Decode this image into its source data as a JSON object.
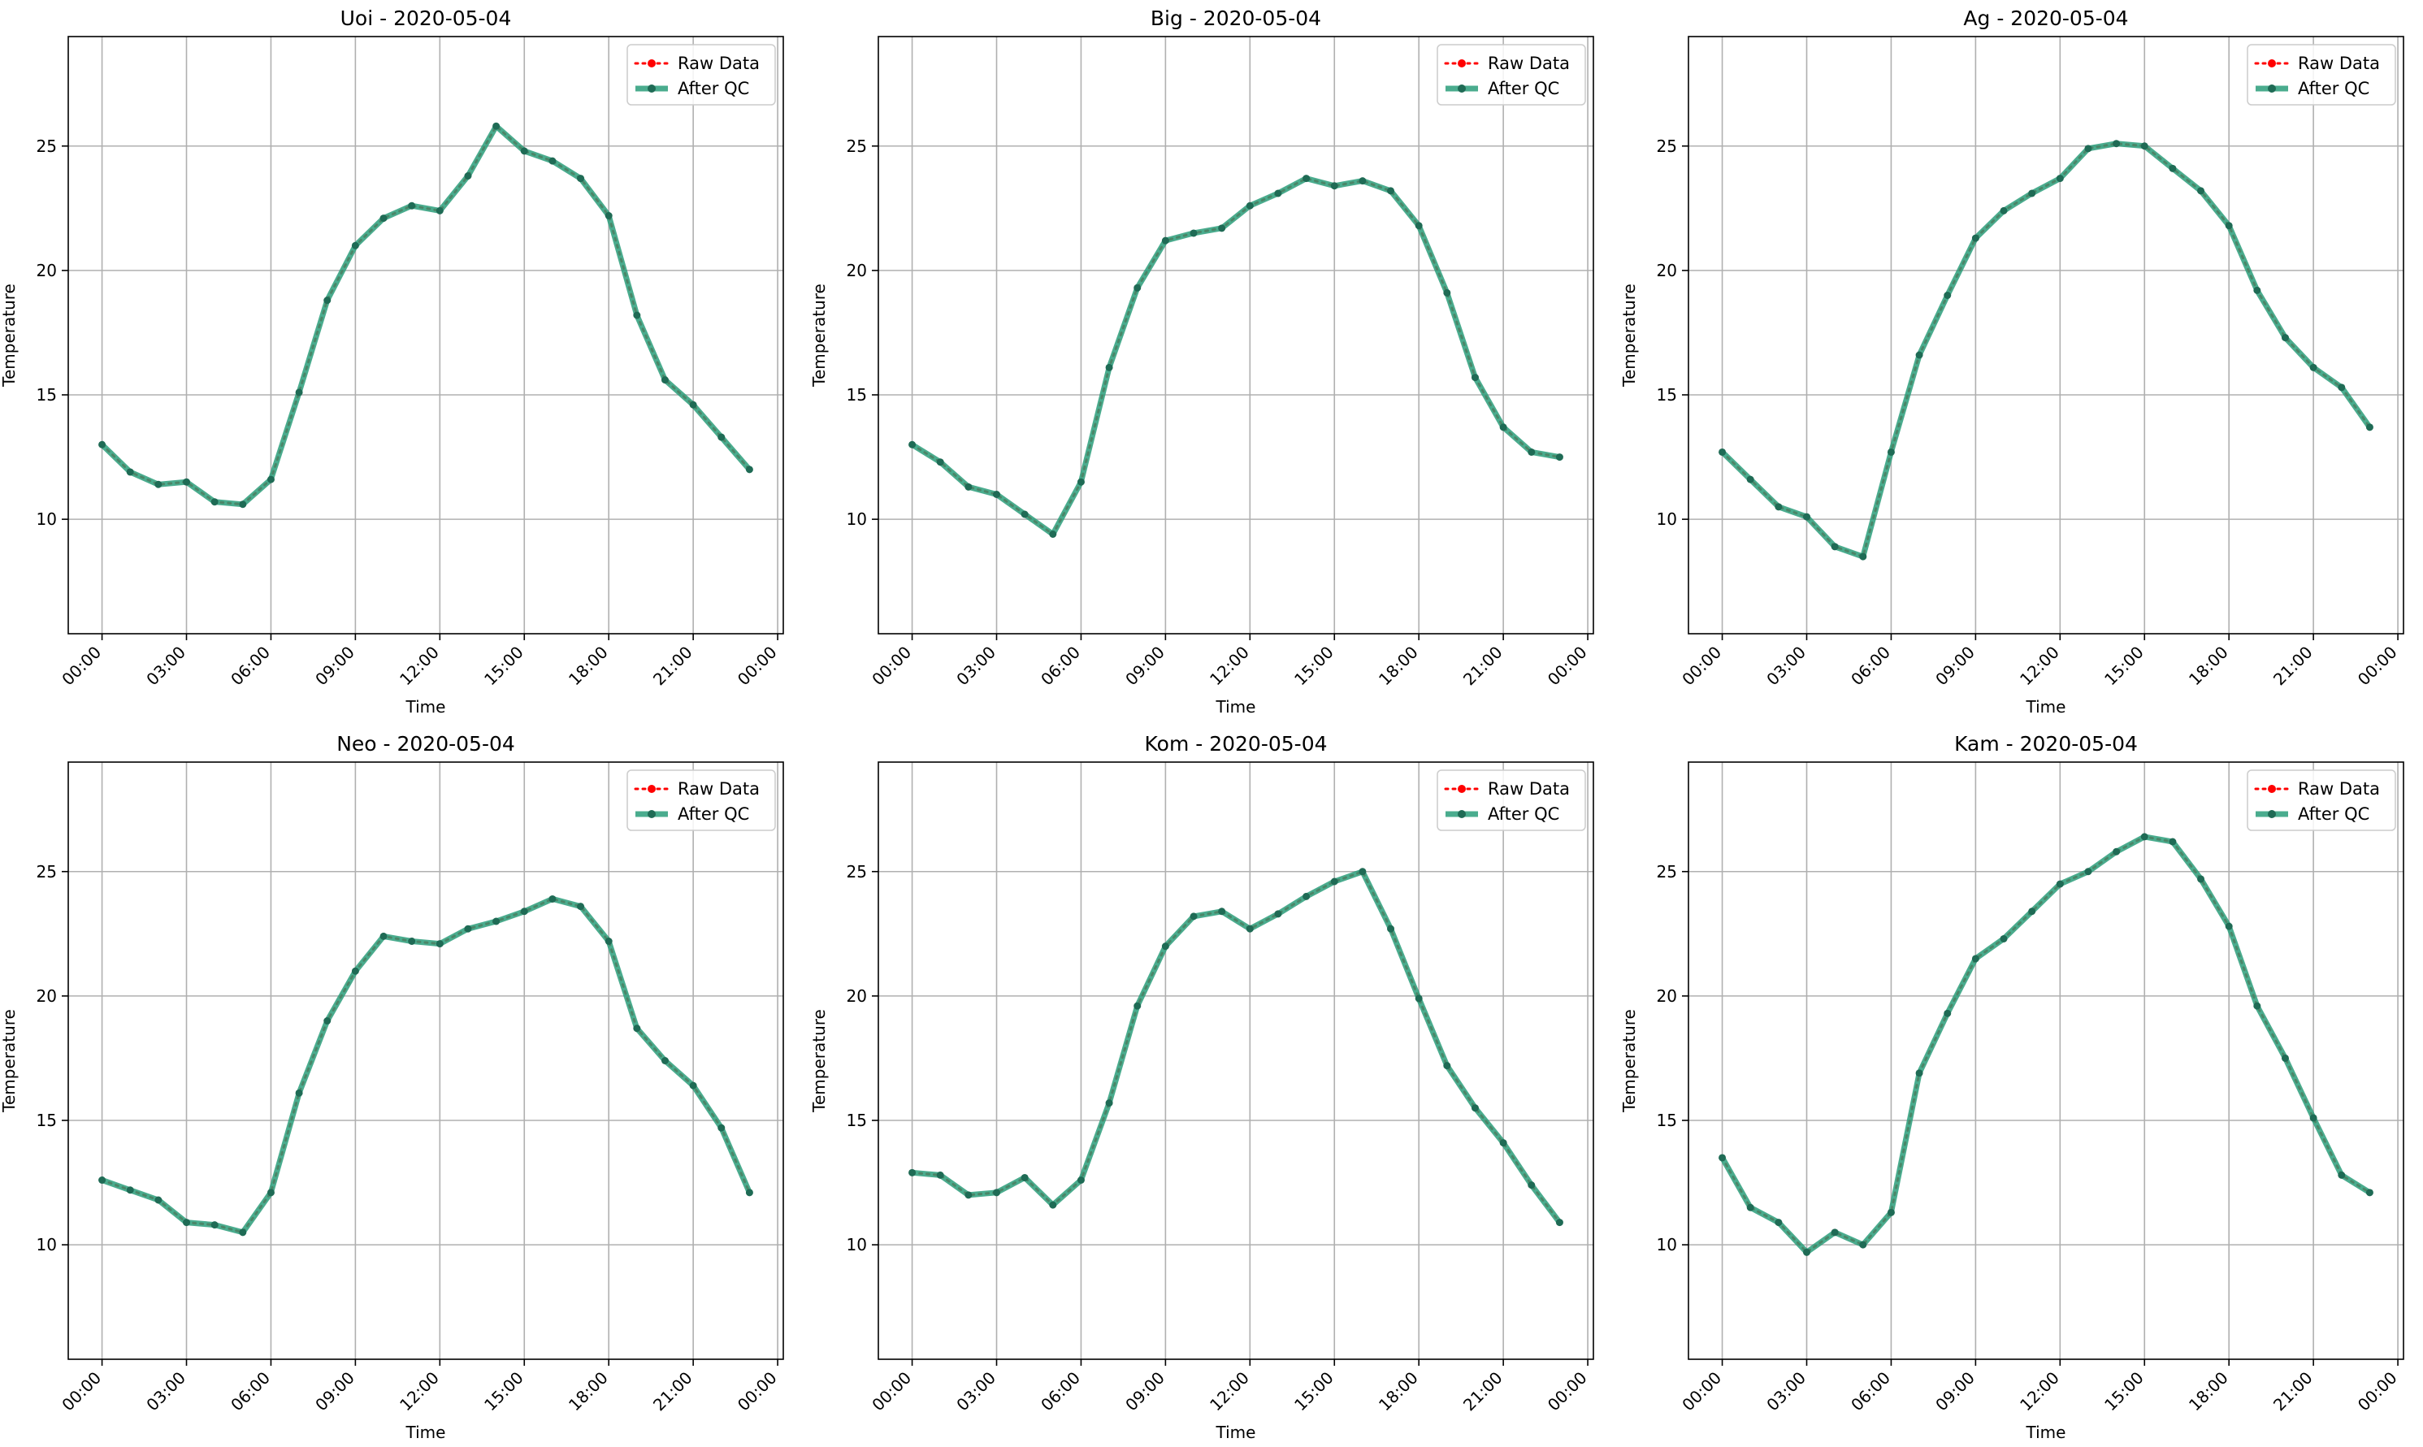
{
  "figure": {
    "xlabel": "Time",
    "ylabel": "Temperature",
    "legend": {
      "placement": "top-right",
      "raw_label": "Raw Data",
      "qc_label": "After QC"
    },
    "colors": {
      "raw": "#ff0000",
      "qc": "#2a9d7a",
      "marker": "#1f6b55",
      "grid": "#b0b0b0"
    },
    "x_ticks": [
      "00:00",
      "03:00",
      "06:00",
      "09:00",
      "12:00",
      "15:00",
      "18:00",
      "21:00",
      "00:00"
    ],
    "y_ticks": [
      10,
      15,
      20,
      25
    ]
  },
  "chart_data": [
    {
      "type": "line",
      "title": "Uoi - 2020-05-04",
      "xlabel": "Time",
      "ylabel": "Temperature",
      "x_hours": [
        0,
        1,
        2,
        3,
        4,
        5,
        6,
        7,
        8,
        9,
        10,
        11,
        12,
        13,
        14,
        15,
        16,
        17,
        18,
        19,
        20,
        21,
        22,
        23
      ],
      "xlim": [
        -1.2,
        24.2
      ],
      "ylim": [
        5.4,
        29.4
      ],
      "grid": true,
      "legend": "top-right",
      "series": [
        {
          "name": "Raw Data",
          "values": [
            13.0,
            11.9,
            11.4,
            11.5,
            10.7,
            10.6,
            11.6,
            15.1,
            18.8,
            21.0,
            22.1,
            22.6,
            22.4,
            23.8,
            25.8,
            24.8,
            24.4,
            23.7,
            22.2,
            18.2,
            15.6,
            14.6,
            13.3,
            12.0
          ]
        },
        {
          "name": "After QC",
          "values": [
            13.0,
            11.9,
            11.4,
            11.5,
            10.7,
            10.6,
            11.6,
            15.1,
            18.8,
            21.0,
            22.1,
            22.6,
            22.4,
            23.8,
            25.8,
            24.8,
            24.4,
            23.7,
            22.2,
            18.2,
            15.6,
            14.6,
            13.3,
            12.0
          ]
        }
      ]
    },
    {
      "type": "line",
      "title": "Big - 2020-05-04",
      "xlabel": "Time",
      "ylabel": "Temperature",
      "x_hours": [
        0,
        1,
        2,
        3,
        4,
        5,
        6,
        7,
        8,
        9,
        10,
        11,
        12,
        13,
        14,
        15,
        16,
        17,
        18,
        19,
        20,
        21,
        22,
        23
      ],
      "xlim": [
        -1.2,
        24.2
      ],
      "ylim": [
        5.4,
        29.4
      ],
      "grid": true,
      "legend": "top-right",
      "series": [
        {
          "name": "Raw Data",
          "values": [
            13.0,
            12.3,
            11.3,
            11.0,
            10.2,
            9.4,
            11.5,
            16.1,
            19.3,
            21.2,
            21.5,
            21.7,
            22.6,
            23.1,
            23.7,
            23.4,
            23.6,
            23.2,
            21.8,
            19.1,
            15.7,
            13.7,
            12.7,
            12.5
          ]
        },
        {
          "name": "After QC",
          "values": [
            13.0,
            12.3,
            11.3,
            11.0,
            10.2,
            9.4,
            11.5,
            16.1,
            19.3,
            21.2,
            21.5,
            21.7,
            22.6,
            23.1,
            23.7,
            23.4,
            23.6,
            23.2,
            21.8,
            19.1,
            15.7,
            13.7,
            12.7,
            12.5
          ]
        }
      ]
    },
    {
      "type": "line",
      "title": "Ag - 2020-05-04",
      "xlabel": "Time",
      "ylabel": "Temperature",
      "x_hours": [
        0,
        1,
        2,
        3,
        4,
        5,
        6,
        7,
        8,
        9,
        10,
        11,
        12,
        13,
        14,
        15,
        16,
        17,
        18,
        19,
        20,
        21,
        22,
        23
      ],
      "xlim": [
        -1.2,
        24.2
      ],
      "ylim": [
        5.4,
        29.4
      ],
      "grid": true,
      "legend": "top-right",
      "series": [
        {
          "name": "Raw Data",
          "values": [
            12.7,
            11.6,
            10.5,
            10.1,
            8.9,
            8.5,
            12.7,
            16.6,
            19.0,
            21.3,
            22.4,
            23.1,
            23.7,
            24.9,
            25.1,
            25.0,
            24.1,
            23.2,
            21.8,
            19.2,
            17.3,
            16.1,
            15.3,
            13.7
          ]
        },
        {
          "name": "After QC",
          "values": [
            12.7,
            11.6,
            10.5,
            10.1,
            8.9,
            8.5,
            12.7,
            16.6,
            19.0,
            21.3,
            22.4,
            23.1,
            23.7,
            24.9,
            25.1,
            25.0,
            24.1,
            23.2,
            21.8,
            19.2,
            17.3,
            16.1,
            15.3,
            13.7
          ]
        }
      ]
    },
    {
      "type": "line",
      "title": "Neo - 2020-05-04",
      "xlabel": "Time",
      "ylabel": "Temperature",
      "x_hours": [
        0,
        1,
        2,
        3,
        4,
        5,
        6,
        7,
        8,
        9,
        10,
        11,
        12,
        13,
        14,
        15,
        16,
        17,
        18,
        19,
        20,
        21,
        22,
        23
      ],
      "xlim": [
        -1.2,
        24.2
      ],
      "ylim": [
        5.4,
        29.4
      ],
      "grid": true,
      "legend": "top-right",
      "series": [
        {
          "name": "Raw Data",
          "values": [
            12.6,
            12.2,
            11.8,
            10.9,
            10.8,
            10.5,
            12.1,
            16.1,
            19.0,
            21.0,
            22.4,
            22.2,
            22.1,
            22.7,
            23.0,
            23.4,
            23.9,
            23.6,
            22.2,
            18.7,
            17.4,
            16.4,
            14.7,
            12.1
          ]
        },
        {
          "name": "After QC",
          "values": [
            12.6,
            12.2,
            11.8,
            10.9,
            10.8,
            10.5,
            12.1,
            16.1,
            19.0,
            21.0,
            22.4,
            22.2,
            22.1,
            22.7,
            23.0,
            23.4,
            23.9,
            23.6,
            22.2,
            18.7,
            17.4,
            16.4,
            14.7,
            12.1
          ]
        }
      ]
    },
    {
      "type": "line",
      "title": "Kom - 2020-05-04",
      "xlabel": "Time",
      "ylabel": "Temperature",
      "x_hours": [
        0,
        1,
        2,
        3,
        4,
        5,
        6,
        7,
        8,
        9,
        10,
        11,
        12,
        13,
        14,
        15,
        16,
        17,
        18,
        19,
        20,
        21,
        22,
        23
      ],
      "xlim": [
        -1.2,
        24.2
      ],
      "ylim": [
        5.4,
        29.4
      ],
      "grid": true,
      "legend": "top-right",
      "series": [
        {
          "name": "Raw Data",
          "values": [
            12.9,
            12.8,
            12.0,
            12.1,
            12.7,
            11.6,
            12.6,
            15.7,
            19.6,
            22.0,
            23.2,
            23.4,
            22.7,
            23.3,
            24.0,
            24.6,
            25.0,
            22.7,
            19.9,
            17.2,
            15.5,
            14.1,
            12.4,
            10.9
          ]
        },
        {
          "name": "After QC",
          "values": [
            12.9,
            12.8,
            12.0,
            12.1,
            12.7,
            11.6,
            12.6,
            15.7,
            19.6,
            22.0,
            23.2,
            23.4,
            22.7,
            23.3,
            24.0,
            24.6,
            25.0,
            22.7,
            19.9,
            17.2,
            15.5,
            14.1,
            12.4,
            10.9
          ]
        }
      ]
    },
    {
      "type": "line",
      "title": "Kam - 2020-05-04",
      "xlabel": "Time",
      "ylabel": "Temperature",
      "x_hours": [
        0,
        1,
        2,
        3,
        4,
        5,
        6,
        7,
        8,
        9,
        10,
        11,
        12,
        13,
        14,
        15,
        16,
        17,
        18,
        19,
        20,
        21,
        22,
        23
      ],
      "xlim": [
        -1.2,
        24.2
      ],
      "ylim": [
        5.4,
        29.4
      ],
      "grid": true,
      "legend": "top-right",
      "series": [
        {
          "name": "Raw Data",
          "values": [
            13.5,
            11.5,
            10.9,
            9.7,
            10.5,
            10.0,
            11.3,
            16.9,
            19.3,
            21.5,
            22.3,
            23.4,
            24.5,
            25.0,
            25.8,
            26.4,
            26.2,
            24.7,
            22.8,
            19.6,
            17.5,
            15.1,
            12.8,
            12.1
          ]
        },
        {
          "name": "After QC",
          "values": [
            13.5,
            11.5,
            10.9,
            9.7,
            10.5,
            10.0,
            11.3,
            16.9,
            19.3,
            21.5,
            22.3,
            23.4,
            24.5,
            25.0,
            25.8,
            26.4,
            26.2,
            24.7,
            22.8,
            19.6,
            17.5,
            15.1,
            12.8,
            12.1
          ]
        }
      ]
    }
  ]
}
